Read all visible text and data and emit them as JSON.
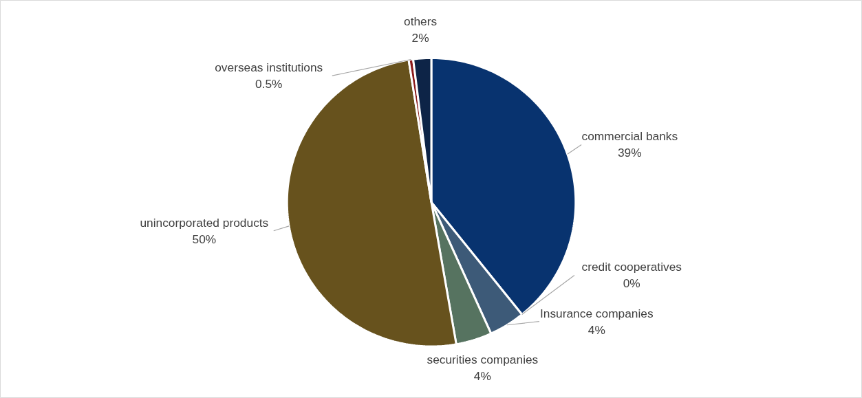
{
  "chart_data": {
    "type": "pie",
    "categories": [
      "commercial banks",
      "credit cooperatives",
      "Insurance companies",
      "securities companies",
      "unincorporated products",
      "overseas institutions",
      "others"
    ],
    "values": [
      39,
      0,
      4,
      4,
      50,
      0.5,
      2
    ],
    "colors": [
      "#08336f",
      "#ffffff",
      "#3d5a78",
      "#567360",
      "#67521d",
      "#8b1a1a",
      "#0d2447"
    ],
    "value_labels": [
      "39%",
      "0%",
      "4%",
      "4%",
      "50%",
      "0.5%",
      "2%"
    ]
  }
}
